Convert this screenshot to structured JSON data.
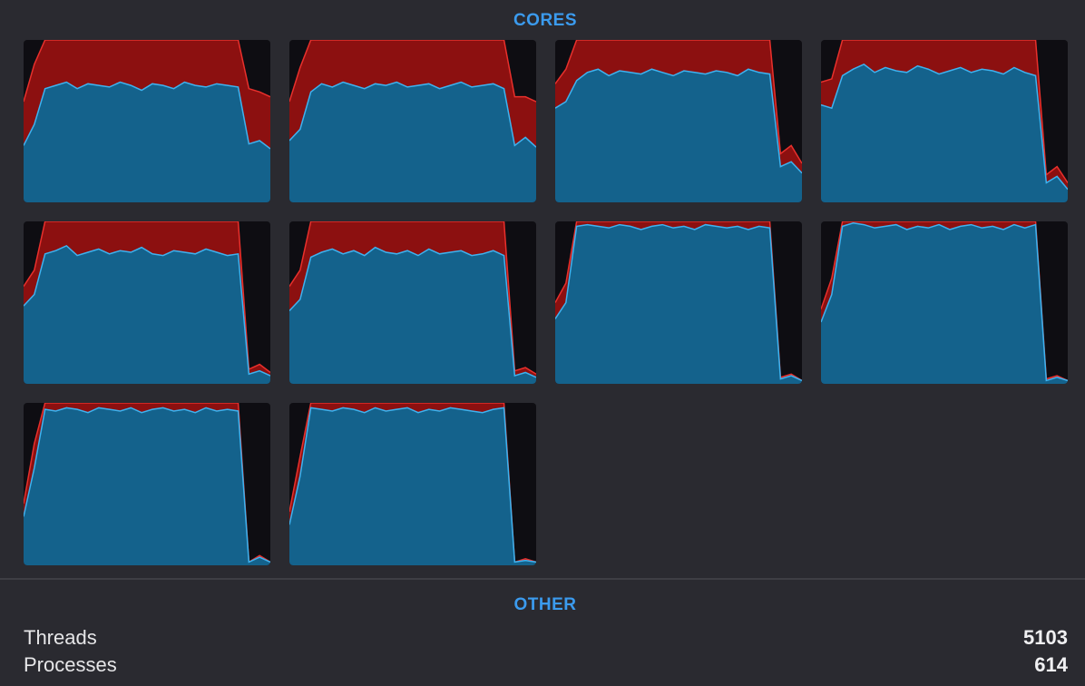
{
  "header": {
    "cores": "CORES",
    "other": "OTHER"
  },
  "chart_data": [
    {
      "type": "area",
      "ylim": [
        0,
        100
      ],
      "series": [
        {
          "color": "#3db3f0",
          "values": [
            35,
            48,
            70,
            72,
            74,
            70,
            73,
            72,
            71,
            74,
            72,
            69,
            73,
            72,
            70,
            74,
            72,
            71,
            73,
            72,
            71,
            36,
            38,
            33
          ]
        },
        {
          "color": "#e8302c",
          "values": [
            27,
            37,
            30,
            28,
            26,
            30,
            27,
            28,
            29,
            26,
            28,
            31,
            27,
            28,
            30,
            26,
            28,
            29,
            27,
            28,
            29,
            34,
            30,
            32
          ]
        }
      ]
    },
    {
      "type": "area",
      "ylim": [
        0,
        100
      ],
      "series": [
        {
          "color": "#3db3f0",
          "values": [
            38,
            45,
            68,
            73,
            71,
            74,
            72,
            70,
            73,
            72,
            74,
            71,
            72,
            73,
            70,
            72,
            74,
            71,
            72,
            73,
            70,
            35,
            40,
            34
          ]
        },
        {
          "color": "#e8302c",
          "values": [
            24,
            38,
            32,
            27,
            29,
            26,
            28,
            30,
            27,
            28,
            26,
            29,
            28,
            27,
            30,
            28,
            26,
            29,
            28,
            27,
            30,
            30,
            25,
            28
          ]
        }
      ]
    },
    {
      "type": "area",
      "ylim": [
        0,
        100
      ],
      "series": [
        {
          "color": "#3db3f0",
          "values": [
            58,
            62,
            75,
            80,
            82,
            78,
            81,
            80,
            79,
            82,
            80,
            78,
            81,
            80,
            79,
            81,
            80,
            78,
            82,
            80,
            79,
            22,
            25,
            18
          ]
        },
        {
          "color": "#e8302c",
          "values": [
            15,
            20,
            25,
            20,
            18,
            22,
            19,
            20,
            21,
            18,
            20,
            22,
            19,
            20,
            21,
            19,
            20,
            22,
            18,
            20,
            21,
            8,
            10,
            6
          ]
        }
      ]
    },
    {
      "type": "area",
      "ylim": [
        0,
        100
      ],
      "series": [
        {
          "color": "#3db3f0",
          "values": [
            60,
            58,
            78,
            82,
            85,
            80,
            83,
            81,
            80,
            84,
            82,
            79,
            81,
            83,
            80,
            82,
            81,
            79,
            83,
            80,
            78,
            12,
            16,
            8
          ]
        },
        {
          "color": "#e8302c",
          "values": [
            14,
            18,
            22,
            18,
            15,
            20,
            17,
            19,
            20,
            16,
            18,
            21,
            19,
            17,
            20,
            18,
            19,
            21,
            17,
            20,
            22,
            5,
            6,
            4
          ]
        }
      ]
    },
    {
      "type": "area",
      "ylim": [
        0,
        100
      ],
      "series": [
        {
          "color": "#3db3f0",
          "values": [
            48,
            55,
            80,
            82,
            85,
            79,
            81,
            83,
            80,
            82,
            81,
            84,
            80,
            79,
            82,
            81,
            80,
            83,
            81,
            79,
            80,
            6,
            8,
            5
          ]
        },
        {
          "color": "#e8302c",
          "values": [
            12,
            15,
            20,
            18,
            15,
            21,
            19,
            17,
            20,
            18,
            19,
            16,
            20,
            21,
            18,
            19,
            20,
            17,
            19,
            21,
            20,
            3,
            4,
            2
          ]
        }
      ]
    },
    {
      "type": "area",
      "ylim": [
        0,
        100
      ],
      "series": [
        {
          "color": "#3db3f0",
          "values": [
            45,
            52,
            78,
            81,
            83,
            80,
            82,
            79,
            84,
            81,
            80,
            82,
            79,
            83,
            80,
            81,
            82,
            79,
            80,
            82,
            79,
            5,
            7,
            4
          ]
        },
        {
          "color": "#e8302c",
          "values": [
            15,
            18,
            22,
            19,
            17,
            20,
            18,
            21,
            16,
            19,
            20,
            18,
            21,
            17,
            20,
            19,
            18,
            21,
            20,
            18,
            21,
            3,
            3,
            2
          ]
        }
      ]
    },
    {
      "type": "area",
      "ylim": [
        0,
        100
      ],
      "series": [
        {
          "color": "#3db3f0",
          "values": [
            40,
            50,
            97,
            98,
            97,
            96,
            98,
            97,
            95,
            97,
            98,
            96,
            97,
            95,
            98,
            97,
            96,
            97,
            95,
            97,
            96,
            3,
            5,
            2
          ]
        },
        {
          "color": "#e8302c",
          "values": [
            10,
            12,
            3,
            2,
            3,
            4,
            2,
            3,
            5,
            3,
            2,
            4,
            3,
            5,
            2,
            3,
            4,
            3,
            5,
            3,
            4,
            1,
            1,
            0
          ]
        }
      ]
    },
    {
      "type": "area",
      "ylim": [
        0,
        100
      ],
      "series": [
        {
          "color": "#3db3f0",
          "values": [
            38,
            55,
            97,
            99,
            98,
            96,
            97,
            98,
            95,
            97,
            96,
            98,
            95,
            97,
            98,
            96,
            97,
            95,
            98,
            96,
            98,
            2,
            4,
            2
          ]
        },
        {
          "color": "#e8302c",
          "values": [
            8,
            10,
            3,
            1,
            2,
            4,
            3,
            2,
            5,
            3,
            4,
            2,
            5,
            3,
            2,
            4,
            3,
            5,
            2,
            4,
            2,
            1,
            1,
            0
          ]
        }
      ]
    },
    {
      "type": "area",
      "ylim": [
        0,
        100
      ],
      "series": [
        {
          "color": "#3db3f0",
          "values": [
            30,
            60,
            96,
            95,
            97,
            96,
            94,
            97,
            96,
            95,
            97,
            94,
            96,
            97,
            95,
            96,
            94,
            97,
            95,
            96,
            95,
            2,
            5,
            2
          ]
        },
        {
          "color": "#e8302c",
          "values": [
            8,
            15,
            4,
            5,
            3,
            4,
            6,
            3,
            4,
            5,
            3,
            6,
            4,
            3,
            5,
            4,
            6,
            3,
            5,
            4,
            5,
            0,
            1,
            0
          ]
        }
      ]
    },
    {
      "type": "area",
      "ylim": [
        0,
        100
      ],
      "series": [
        {
          "color": "#3db3f0",
          "values": [
            25,
            55,
            97,
            96,
            95,
            97,
            96,
            94,
            97,
            95,
            96,
            97,
            94,
            96,
            95,
            97,
            96,
            95,
            94,
            96,
            97,
            2,
            3,
            2
          ]
        },
        {
          "color": "#e8302c",
          "values": [
            8,
            12,
            3,
            4,
            5,
            3,
            4,
            6,
            3,
            5,
            4,
            3,
            6,
            4,
            5,
            3,
            4,
            5,
            6,
            4,
            3,
            0,
            1,
            0
          ]
        }
      ]
    }
  ],
  "stats": [
    {
      "label": "Threads",
      "value": 5103
    },
    {
      "label": "Processes",
      "value": 614
    }
  ]
}
